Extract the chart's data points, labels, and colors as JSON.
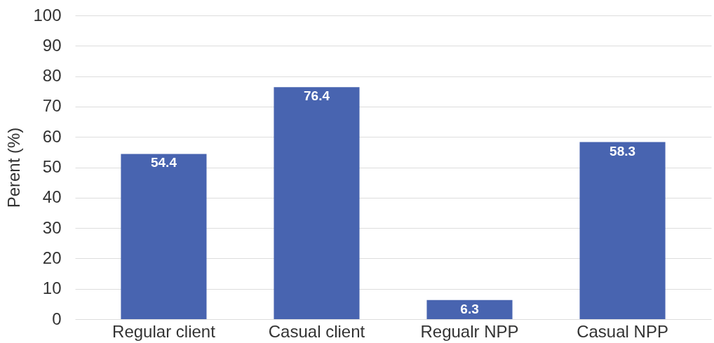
{
  "chart_data": {
    "type": "bar",
    "ylabel": "Perent (%)",
    "categories": [
      "Regular client",
      "Casual client",
      "Regualr NPP",
      "Casual NPP"
    ],
    "values": [
      54.4,
      76.4,
      6.3,
      58.3
    ],
    "color": "#4864b0",
    "ylim": [
      0,
      100
    ],
    "yticks": [
      0,
      10,
      20,
      30,
      40,
      50,
      60,
      70,
      80,
      90,
      100
    ],
    "grid": "y",
    "data_labels": true
  }
}
